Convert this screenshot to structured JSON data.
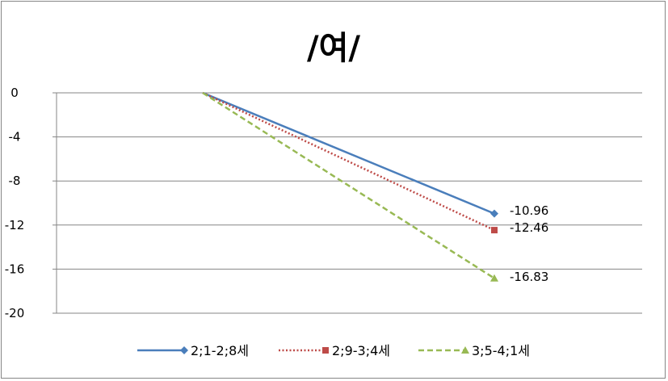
{
  "chart_data": {
    "type": "line",
    "title": "/여/",
    "xlabel": "",
    "ylabel": "",
    "ylim": [
      -20,
      0
    ],
    "yticks": [
      0,
      -4,
      -8,
      -12,
      -16,
      -20
    ],
    "ytick_labels": [
      "0",
      "-4",
      "-8",
      "-12",
      "-16",
      "-20"
    ],
    "grid": true,
    "legend": "bottom",
    "series": [
      {
        "name": "2;1-2;8세",
        "start": 0,
        "end": -10.96,
        "end_label": "-10.96",
        "color": "#4a7ebb",
        "dash": "solid",
        "marker": "diamond"
      },
      {
        "name": "2;9-3;4세",
        "start": 0,
        "end": -12.46,
        "end_label": "-12.46",
        "color": "#be4b48",
        "dash": "dotted",
        "marker": "square"
      },
      {
        "name": "3;5-4;1세",
        "start": 0,
        "end": -16.83,
        "end_label": "-16.83",
        "color": "#98b954",
        "dash": "dashed",
        "marker": "triangle"
      }
    ]
  }
}
